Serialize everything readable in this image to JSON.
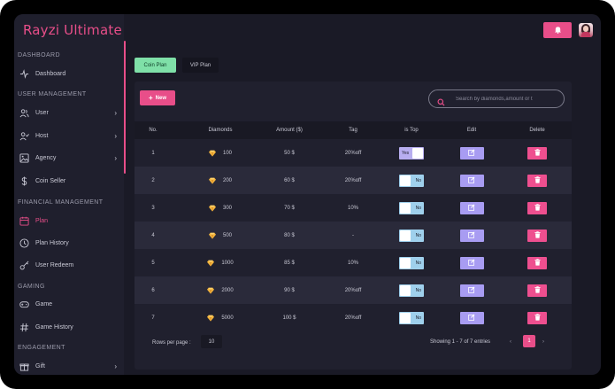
{
  "app": {
    "title": "Rayzi Ultimate"
  },
  "sidebar": {
    "sections": [
      {
        "label": "DASHBOARD"
      },
      {
        "label": "USER MANAGEMENT"
      },
      {
        "label": "FINANCIAL MANAGEMENT"
      },
      {
        "label": "GAMING"
      },
      {
        "label": "ENGAGEMENT"
      }
    ],
    "items": [
      {
        "label": "Dashboard",
        "icon": "activity-icon",
        "has_children": false,
        "active": false
      },
      {
        "label": "User",
        "icon": "users-icon",
        "has_children": true,
        "active": false
      },
      {
        "label": "Host",
        "icon": "user-check-icon",
        "has_children": true,
        "active": false
      },
      {
        "label": "Agency",
        "icon": "image-icon",
        "has_children": true,
        "active": false
      },
      {
        "label": "Coin Seller",
        "icon": "dollar-icon",
        "has_children": false,
        "active": false
      },
      {
        "label": "Plan",
        "icon": "calendar-icon",
        "has_children": false,
        "active": true
      },
      {
        "label": "Plan History",
        "icon": "clock-icon",
        "has_children": false,
        "active": false
      },
      {
        "label": "User Redeem",
        "icon": "key-icon",
        "has_children": false,
        "active": false
      },
      {
        "label": "Game",
        "icon": "gamepad-icon",
        "has_children": false,
        "active": false
      },
      {
        "label": "Game History",
        "icon": "hash-icon",
        "has_children": false,
        "active": false
      },
      {
        "label": "Gift",
        "icon": "gift-icon",
        "has_children": true,
        "active": false
      }
    ]
  },
  "topbar": {
    "bell_icon": "bell-icon",
    "avatar_icon": "user-avatar"
  },
  "tabs": [
    {
      "label": "Coin Plan",
      "active": true
    },
    {
      "label": "VIP Plan",
      "active": false
    }
  ],
  "toolbar": {
    "new_label": "New",
    "search_placeholder": "Search by diamonds,amount or t"
  },
  "table": {
    "headers": [
      "No.",
      "Diamonds",
      "Amount ($)",
      "Tag",
      "is Top",
      "Edit",
      "Delete"
    ],
    "rows": [
      {
        "no": "1",
        "diamonds": "100",
        "amount": "50 $",
        "tag": "20%off",
        "is_top": "Yes",
        "top_on": true
      },
      {
        "no": "2",
        "diamonds": "200",
        "amount": "60 $",
        "tag": "20%off",
        "is_top": "No",
        "top_on": false
      },
      {
        "no": "3",
        "diamonds": "300",
        "amount": "70 $",
        "tag": "10%",
        "is_top": "No",
        "top_on": false
      },
      {
        "no": "4",
        "diamonds": "500",
        "amount": "80 $",
        "tag": "-",
        "is_top": "No",
        "top_on": false
      },
      {
        "no": "5",
        "diamonds": "1000",
        "amount": "85 $",
        "tag": "10%",
        "is_top": "No",
        "top_on": false
      },
      {
        "no": "6",
        "diamonds": "2000",
        "amount": "90 $",
        "tag": "20%off",
        "is_top": "No",
        "top_on": false
      },
      {
        "no": "7",
        "diamonds": "5000",
        "amount": "100 $",
        "tag": "20%off",
        "is_top": "No",
        "top_on": false
      }
    ]
  },
  "footer": {
    "rows_per_page_label": "Rows per page :",
    "rows_per_page_value": "10",
    "showing_text": "Showing 1 - 7 of 7 entries",
    "prev": "‹",
    "current_page": "1",
    "next": "›"
  },
  "colors": {
    "accent": "#e84e89",
    "tab_active": "#7fe0a8",
    "edit": "#a89cf2",
    "delete": "#ee4f8f",
    "toggle_off": "#9fd0ec",
    "toggle_on": "#b8aef0",
    "gem": "#f4b63f"
  }
}
